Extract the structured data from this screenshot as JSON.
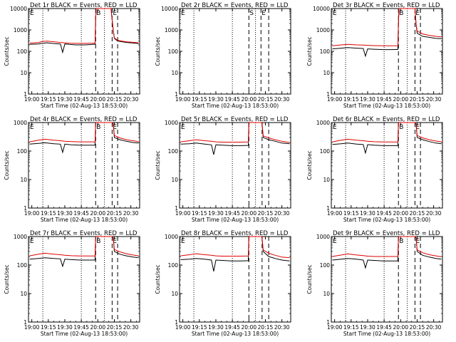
{
  "chart_data": {
    "type": "line",
    "grid_layout": "3x3",
    "ylabel": "Counts/sec",
    "xlabel": "Start Time (02-Aug-13 18:53:00)",
    "x_tick_labels": [
      "19:00",
      "19:15",
      "19:30",
      "19:45",
      "20:00",
      "20:15",
      "20:30"
    ],
    "x_ticks_min": [
      0,
      15,
      30,
      45,
      60,
      75,
      90
    ],
    "xlim_min": [
      -3,
      98
    ],
    "y_scale": "log",
    "ylim": [
      1,
      10000
    ],
    "y_ticks": [
      1,
      10,
      100,
      1000,
      10000
    ],
    "y_tick_labels": [
      "1",
      "10",
      "100",
      "1000",
      "10000"
    ],
    "dotted_lines_min": [
      10,
      45,
      66
    ],
    "colors": {
      "events": "#000000",
      "lld": "#e00000",
      "axes": "#000000"
    },
    "series_names": [
      "Events",
      "LLD"
    ],
    "panels": [
      {
        "title": "Det 1r BLACK = Events, RED = LLD",
        "ylim": [
          1,
          10000
        ],
        "markers": [
          {
            "x": -2.5,
            "label": "E"
          },
          {
            "x": 58,
            "label": "B"
          },
          {
            "x": 73,
            "label": "E"
          },
          {
            "x": 78,
            "label": ""
          }
        ],
        "events_x": [
          -2,
          6,
          10,
          14,
          20,
          26,
          28,
          30,
          34,
          40,
          48,
          56,
          57.5,
          58,
          58.5,
          63,
          68,
          72,
          73,
          74,
          75,
          78,
          82,
          86,
          90,
          94,
          97
        ],
        "events_y": [
          210,
          220,
          240,
          250,
          230,
          220,
          90,
          220,
          210,
          200,
          200,
          210,
          210,
          3000,
          10000,
          10000,
          10000,
          10000,
          3000,
          1000,
          400,
          300,
          280,
          260,
          250,
          240,
          230
        ],
        "lld_x": [
          -2,
          6,
          10,
          14,
          20,
          26,
          30,
          34,
          40,
          48,
          56,
          57.5,
          58,
          58.5,
          63,
          68,
          72,
          73,
          74,
          75,
          78,
          82,
          86,
          90,
          94,
          97
        ],
        "lld_y": [
          240,
          260,
          290,
          300,
          280,
          260,
          250,
          240,
          235,
          235,
          240,
          240,
          3000,
          10000,
          10000,
          10000,
          10000,
          3000,
          1000,
          420,
          330,
          300,
          280,
          270,
          260,
          250
        ]
      },
      {
        "title": "Det 2r BLACK = Events, RED = LLD",
        "ylim": [
          1,
          10000
        ],
        "markers": [
          {
            "x": -2.5,
            "label": "E"
          },
          {
            "x": 60,
            "label": "S"
          },
          {
            "x": 71,
            "label": "E"
          },
          {
            "x": 78,
            "label": ""
          }
        ],
        "events_x": [],
        "events_y": [],
        "lld_x": [],
        "lld_y": []
      },
      {
        "title": "Det 3r BLACK = Events, RED = LLD",
        "ylim": [
          1,
          10000
        ],
        "markers": [
          {
            "x": -2.5,
            "label": "E"
          },
          {
            "x": 58,
            "label": "B"
          },
          {
            "x": 73,
            "label": "E"
          },
          {
            "x": 78,
            "label": ""
          }
        ],
        "events_x": [
          -2,
          6,
          12,
          20,
          26,
          28,
          30,
          36,
          44,
          52,
          57.5,
          58,
          58.5,
          68,
          73,
          74,
          75,
          80,
          86,
          92,
          97
        ],
        "events_y": [
          130,
          140,
          150,
          140,
          135,
          60,
          130,
          125,
          120,
          120,
          122,
          2000,
          10000,
          10000,
          10000,
          2000,
          700,
          500,
          450,
          400,
          390
        ],
        "lld_x": [
          -2,
          6,
          12,
          20,
          26,
          30,
          36,
          44,
          52,
          57.5,
          58,
          58.5,
          68,
          73,
          74,
          75,
          80,
          86,
          92,
          97
        ],
        "lld_y": [
          180,
          200,
          210,
          200,
          195,
          190,
          185,
          180,
          180,
          180,
          2000,
          10000,
          10000,
          10000,
          2000,
          900,
          650,
          560,
          500,
          470
        ]
      },
      {
        "title": "Det 4r BLACK = Events, RED = LLD",
        "ylim": [
          1,
          1000
        ],
        "markers": [
          {
            "x": -2.5,
            "label": "E"
          },
          {
            "x": 58,
            "label": "B"
          },
          {
            "x": 73,
            "label": "E"
          },
          {
            "x": 78,
            "label": ""
          }
        ],
        "events_x": [
          -2,
          6,
          12,
          20,
          26,
          28,
          30,
          36,
          44,
          52,
          57.5,
          58,
          58.5,
          72,
          73,
          74,
          75,
          80,
          86,
          92,
          97
        ],
        "events_y": [
          175,
          185,
          195,
          180,
          175,
          90,
          175,
          165,
          160,
          160,
          160,
          900,
          1000,
          1000,
          1000,
          900,
          300,
          250,
          220,
          200,
          190
        ],
        "lld_x": [
          -2,
          6,
          12,
          20,
          26,
          30,
          36,
          44,
          52,
          57.5,
          58,
          58.5,
          72,
          73,
          74,
          75,
          80,
          86,
          92,
          97
        ],
        "lld_y": [
          210,
          240,
          260,
          240,
          230,
          220,
          215,
          210,
          210,
          210,
          900,
          1000,
          1000,
          1000,
          900,
          350,
          290,
          250,
          230,
          215
        ]
      },
      {
        "title": "Det 5r BLACK = Events, RED = LLD",
        "ylim": [
          1,
          1000
        ],
        "markers": [
          {
            "x": -2.5,
            "label": "E"
          },
          {
            "x": 60,
            "label": ""
          },
          {
            "x": 72,
            "label": ""
          },
          {
            "x": 78,
            "label": ""
          }
        ],
        "events_x": [
          -2,
          6,
          12,
          20,
          26,
          28,
          30,
          36,
          44,
          52,
          59.5,
          60,
          60.5,
          70,
          71.5,
          72,
          73,
          78,
          84,
          90,
          97
        ],
        "events_y": [
          175,
          180,
          190,
          175,
          165,
          75,
          165,
          160,
          155,
          155,
          158,
          900,
          1000,
          1000,
          1000,
          900,
          300,
          250,
          220,
          190,
          180
        ],
        "lld_x": [
          -2,
          6,
          12,
          20,
          26,
          30,
          36,
          44,
          52,
          59.5,
          60,
          60.5,
          70,
          71.5,
          72,
          73,
          78,
          84,
          90,
          97
        ],
        "lld_y": [
          210,
          230,
          250,
          230,
          220,
          210,
          205,
          205,
          205,
          208,
          900,
          1000,
          1000,
          1000,
          900,
          340,
          290,
          250,
          220,
          200
        ]
      },
      {
        "title": "Det 6r BLACK = Events, RED = LLD",
        "ylim": [
          1,
          1000
        ],
        "markers": [
          {
            "x": -2.5,
            "label": "E"
          },
          {
            "x": 58,
            "label": "B"
          },
          {
            "x": 73,
            "label": "E"
          },
          {
            "x": 78,
            "label": ""
          }
        ],
        "events_x": [
          -2,
          6,
          12,
          20,
          26,
          28,
          30,
          36,
          44,
          52,
          57.5,
          58,
          58.5,
          72,
          73,
          74,
          75,
          80,
          86,
          92,
          97
        ],
        "events_y": [
          170,
          180,
          190,
          175,
          170,
          85,
          168,
          160,
          155,
          155,
          155,
          900,
          1000,
          1000,
          1000,
          900,
          300,
          250,
          215,
          190,
          180
        ],
        "lld_x": [
          -2,
          6,
          12,
          20,
          26,
          30,
          36,
          44,
          52,
          57.5,
          58,
          58.5,
          72,
          73,
          74,
          75,
          80,
          86,
          92,
          97
        ],
        "lld_y": [
          210,
          240,
          260,
          240,
          230,
          220,
          212,
          208,
          208,
          208,
          900,
          1000,
          1000,
          1000,
          900,
          350,
          290,
          250,
          225,
          210
        ]
      },
      {
        "title": "Det 7r BLACK = Events, RED = LLD",
        "ylim": [
          1,
          1000
        ],
        "markers": [
          {
            "x": -2.5,
            "label": "E"
          },
          {
            "x": 58,
            "label": "B"
          },
          {
            "x": 73,
            "label": "E"
          },
          {
            "x": 78,
            "label": ""
          }
        ],
        "events_x": [
          -2,
          6,
          12,
          20,
          26,
          28,
          30,
          36,
          44,
          52,
          57.5,
          58,
          58.5,
          72,
          73,
          74,
          75,
          80,
          86,
          92,
          97
        ],
        "events_y": [
          160,
          170,
          180,
          170,
          165,
          90,
          160,
          155,
          150,
          150,
          150,
          900,
          1000,
          1000,
          1000,
          900,
          300,
          240,
          210,
          190,
          180
        ],
        "lld_x": [
          -2,
          6,
          12,
          20,
          26,
          30,
          36,
          44,
          52,
          57.5,
          58,
          58.5,
          72,
          73,
          74,
          75,
          80,
          86,
          92,
          97
        ],
        "lld_y": [
          210,
          240,
          260,
          240,
          230,
          220,
          212,
          208,
          208,
          208,
          900,
          1000,
          1000,
          1000,
          900,
          350,
          290,
          250,
          225,
          210
        ]
      },
      {
        "title": "Det 8r BLACK = Events, RED = LLD",
        "ylim": [
          1,
          1000
        ],
        "markers": [
          {
            "x": -2.5,
            "label": "E"
          },
          {
            "x": 60,
            "label": ""
          },
          {
            "x": 72,
            "label": ""
          },
          {
            "x": 78,
            "label": ""
          }
        ],
        "events_x": [
          -2,
          6,
          12,
          20,
          26,
          28,
          30,
          36,
          44,
          52,
          59.5,
          60,
          60.5,
          70,
          71.5,
          72,
          73,
          78,
          84,
          90,
          97
        ],
        "events_y": [
          155,
          160,
          170,
          160,
          150,
          60,
          150,
          145,
          140,
          140,
          142,
          900,
          1000,
          1000,
          1000,
          900,
          300,
          200,
          170,
          150,
          140
        ],
        "lld_x": [
          -2,
          6,
          12,
          20,
          26,
          30,
          36,
          44,
          52,
          59.5,
          60,
          60.5,
          70,
          71.5,
          72,
          73,
          78,
          84,
          90,
          97
        ],
        "lld_y": [
          210,
          230,
          250,
          230,
          220,
          210,
          205,
          205,
          205,
          208,
          900,
          1000,
          1000,
          1000,
          900,
          340,
          260,
          220,
          190,
          180
        ]
      },
      {
        "title": "Det 9r BLACK = Events, RED = LLD",
        "ylim": [
          1,
          1000
        ],
        "markers": [
          {
            "x": -2.5,
            "label": "E"
          },
          {
            "x": 58,
            "label": "B"
          },
          {
            "x": 73,
            "label": "E"
          },
          {
            "x": 78,
            "label": ""
          }
        ],
        "events_x": [
          -2,
          6,
          12,
          20,
          26,
          28,
          30,
          36,
          44,
          52,
          57.5,
          58,
          58.5,
          72,
          73,
          74,
          75,
          80,
          86,
          92,
          97
        ],
        "events_y": [
          150,
          160,
          170,
          160,
          150,
          80,
          150,
          145,
          140,
          140,
          140,
          900,
          1000,
          1000,
          1000,
          900,
          300,
          220,
          190,
          170,
          160
        ],
        "lld_x": [
          -2,
          6,
          12,
          20,
          26,
          30,
          36,
          44,
          52,
          57.5,
          58,
          58.5,
          72,
          73,
          74,
          75,
          80,
          86,
          92,
          97
        ],
        "lld_y": [
          200,
          225,
          245,
          225,
          215,
          205,
          200,
          200,
          200,
          200,
          900,
          1000,
          1000,
          1000,
          900,
          340,
          270,
          230,
          210,
          195
        ]
      }
    ]
  }
}
